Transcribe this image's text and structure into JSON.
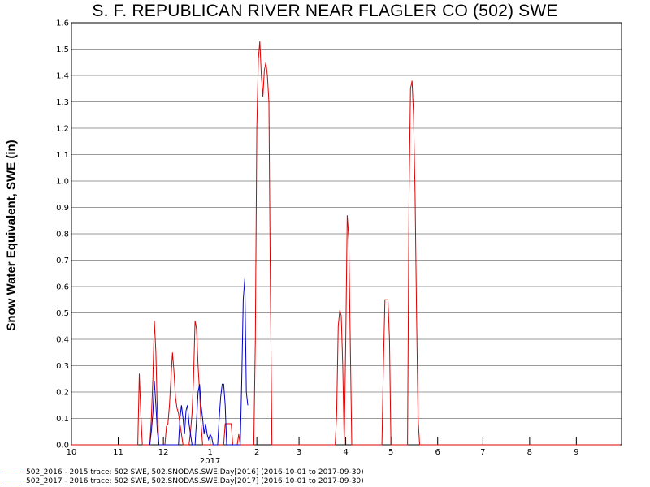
{
  "chart_data": {
    "type": "line",
    "title": "S. F. REPUBLICAN RIVER NEAR FLAGLER CO (502) SWE",
    "xlabel": "",
    "ylabel": "Snow Water Equivalent, SWE (in)",
    "ylim": [
      0,
      1.6
    ],
    "yticks": [
      "0.0",
      "0.1",
      "0.2",
      "0.3",
      "0.4",
      "0.5",
      "0.6",
      "0.7",
      "0.8",
      "0.9",
      "1.0",
      "1.1",
      "1.2",
      "1.3",
      "1.4",
      "1.5",
      "1.6"
    ],
    "xlim": [
      "2016-10-01",
      "2017-10-01"
    ],
    "xticks": [
      {
        "date": "2016-10-01",
        "label": "10"
      },
      {
        "date": "2016-11-01",
        "label": "11"
      },
      {
        "date": "2016-12-01",
        "label": "12"
      },
      {
        "date": "2017-01-01",
        "label": "1"
      },
      {
        "date": "2017-02-01",
        "label": "2"
      },
      {
        "date": "2017-03-01",
        "label": "3"
      },
      {
        "date": "2017-04-01",
        "label": "4"
      },
      {
        "date": "2017-05-01",
        "label": "5"
      },
      {
        "date": "2017-06-01",
        "label": "6"
      },
      {
        "date": "2017-07-01",
        "label": "7"
      },
      {
        "date": "2017-08-01",
        "label": "8"
      },
      {
        "date": "2017-09-01",
        "label": "9"
      }
    ],
    "year_label": {
      "date": "2017-01-01",
      "text": "2017"
    },
    "grid": true,
    "legend_position": "bottom-left",
    "series": [
      {
        "name": "502_2016 - 2015 trace: 502 SWE, 502.SNODAS.SWE.Day[2016] (2016-10-01 to 2017-09-30)",
        "color": "#dd0000",
        "points": [
          [
            "2016-10-01",
            0
          ],
          [
            "2016-11-14",
            0
          ],
          [
            "2016-11-15",
            0.27
          ],
          [
            "2016-11-16",
            0.12
          ],
          [
            "2016-11-17",
            0
          ],
          [
            "2016-11-22",
            0
          ],
          [
            "2016-11-23",
            0.1
          ],
          [
            "2016-11-24",
            0.25
          ],
          [
            "2016-11-25",
            0.47
          ],
          [
            "2016-11-26",
            0.35
          ],
          [
            "2016-11-27",
            0.12
          ],
          [
            "2016-11-28",
            0
          ],
          [
            "2016-12-02",
            0
          ],
          [
            "2016-12-03",
            0.07
          ],
          [
            "2016-12-04",
            0.08
          ],
          [
            "2016-12-05",
            0.15
          ],
          [
            "2016-12-06",
            0.25
          ],
          [
            "2016-12-07",
            0.35
          ],
          [
            "2016-12-08",
            0.28
          ],
          [
            "2016-12-09",
            0.18
          ],
          [
            "2016-12-10",
            0.14
          ],
          [
            "2016-12-11",
            0.12
          ],
          [
            "2016-12-12",
            0.08
          ],
          [
            "2016-12-13",
            0.04
          ],
          [
            "2016-12-14",
            0
          ],
          [
            "2016-12-18",
            0
          ],
          [
            "2016-12-19",
            0.05
          ],
          [
            "2016-12-20",
            0.12
          ],
          [
            "2016-12-21",
            0.25
          ],
          [
            "2016-12-22",
            0.47
          ],
          [
            "2016-12-23",
            0.44
          ],
          [
            "2016-12-24",
            0.3
          ],
          [
            "2016-12-25",
            0.2
          ],
          [
            "2016-12-26",
            0.08
          ],
          [
            "2016-12-27",
            0
          ],
          [
            "2017-01-10",
            0
          ],
          [
            "2017-01-11",
            0.08
          ],
          [
            "2017-01-12",
            0.08
          ],
          [
            "2017-01-13",
            0.08
          ],
          [
            "2017-01-14",
            0.08
          ],
          [
            "2017-01-15",
            0.08
          ],
          [
            "2017-01-16",
            0
          ],
          [
            "2017-01-19",
            0
          ],
          [
            "2017-01-20",
            0.04
          ],
          [
            "2017-01-21",
            0
          ],
          [
            "2017-01-30",
            0
          ],
          [
            "2017-01-31",
            0.4
          ],
          [
            "2017-02-01",
            1.2
          ],
          [
            "2017-02-02",
            1.46
          ],
          [
            "2017-02-03",
            1.53
          ],
          [
            "2017-02-04",
            1.4
          ],
          [
            "2017-02-05",
            1.32
          ],
          [
            "2017-02-06",
            1.42
          ],
          [
            "2017-02-07",
            1.45
          ],
          [
            "2017-02-08",
            1.4
          ],
          [
            "2017-02-09",
            1.3
          ],
          [
            "2017-02-10",
            0.6
          ],
          [
            "2017-02-11",
            0
          ],
          [
            "2017-03-25",
            0
          ],
          [
            "2017-03-26",
            0.12
          ],
          [
            "2017-03-27",
            0.45
          ],
          [
            "2017-03-28",
            0.51
          ],
          [
            "2017-03-29",
            0.49
          ],
          [
            "2017-03-30",
            0.3
          ],
          [
            "2017-03-31",
            0
          ],
          [
            "2017-04-01",
            0.4
          ],
          [
            "2017-04-02",
            0.87
          ],
          [
            "2017-04-03",
            0.78
          ],
          [
            "2017-04-04",
            0.4
          ],
          [
            "2017-04-05",
            0
          ],
          [
            "2017-04-25",
            0
          ],
          [
            "2017-04-26",
            0.3
          ],
          [
            "2017-04-27",
            0.55
          ],
          [
            "2017-04-28",
            0.55
          ],
          [
            "2017-04-29",
            0.55
          ],
          [
            "2017-04-30",
            0.4
          ],
          [
            "2017-05-01",
            0
          ],
          [
            "2017-05-12",
            0
          ],
          [
            "2017-05-13",
            0.95
          ],
          [
            "2017-05-14",
            1.35
          ],
          [
            "2017-05-15",
            1.38
          ],
          [
            "2017-05-16",
            1.25
          ],
          [
            "2017-05-17",
            0.95
          ],
          [
            "2017-05-18",
            0.5
          ],
          [
            "2017-05-19",
            0.1
          ],
          [
            "2017-05-20",
            0
          ],
          [
            "2017-09-30",
            0
          ]
        ]
      },
      {
        "name": "502_2017 - 2016 trace: 502 SWE, 502.SNODAS.SWE.Day[2017] (2016-10-01 to 2017-09-30)",
        "color": "#0000c8",
        "points": [
          [
            "2016-11-22",
            0
          ],
          [
            "2016-11-23",
            0.05
          ],
          [
            "2016-11-24",
            0.12
          ],
          [
            "2016-11-25",
            0.24
          ],
          [
            "2016-11-26",
            0.15
          ],
          [
            "2016-11-27",
            0.05
          ],
          [
            "2016-11-28",
            0
          ],
          [
            "2016-12-11",
            0
          ],
          [
            "2016-12-12",
            0.1
          ],
          [
            "2016-12-13",
            0.15
          ],
          [
            "2016-12-14",
            0.1
          ],
          [
            "2016-12-15",
            0.04
          ],
          [
            "2016-12-16",
            0.13
          ],
          [
            "2016-12-17",
            0.15
          ],
          [
            "2016-12-18",
            0.08
          ],
          [
            "2016-12-19",
            0.04
          ],
          [
            "2016-12-20",
            0
          ],
          [
            "2016-12-22",
            0
          ],
          [
            "2016-12-23",
            0.09
          ],
          [
            "2016-12-24",
            0.2
          ],
          [
            "2016-12-25",
            0.23
          ],
          [
            "2016-12-26",
            0.15
          ],
          [
            "2016-12-27",
            0.1
          ],
          [
            "2016-12-28",
            0.04
          ],
          [
            "2016-12-29",
            0.08
          ],
          [
            "2016-12-30",
            0.04
          ],
          [
            "2016-12-31",
            0.02
          ],
          [
            "2017-01-01",
            0.04
          ],
          [
            "2017-01-02",
            0.03
          ],
          [
            "2017-01-03",
            0
          ],
          [
            "2017-01-06",
            0
          ],
          [
            "2017-01-07",
            0.1
          ],
          [
            "2017-01-08",
            0.18
          ],
          [
            "2017-01-09",
            0.23
          ],
          [
            "2017-01-10",
            0.23
          ],
          [
            "2017-01-11",
            0.15
          ],
          [
            "2017-01-12",
            0
          ],
          [
            "2017-01-21",
            0
          ],
          [
            "2017-01-22",
            0.25
          ],
          [
            "2017-01-23",
            0.55
          ],
          [
            "2017-01-24",
            0.63
          ],
          [
            "2017-01-25",
            0.2
          ],
          [
            "2017-01-26",
            0.15
          ]
        ]
      }
    ]
  }
}
